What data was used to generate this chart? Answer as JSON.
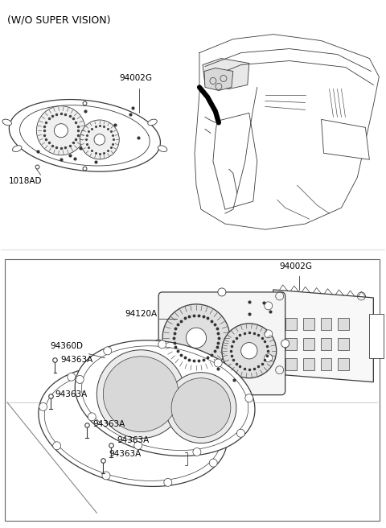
{
  "title": "(W/O SUPER VISION)",
  "bg_color": "#ffffff",
  "line_color": "#3a3a3a",
  "text_color": "#000000",
  "fig_width": 4.8,
  "fig_height": 6.56,
  "dpi": 100,
  "top_label1": "94002G",
  "top_label2": "1018AD",
  "bottom_label0": "94002G",
  "bottom_label1": "94120A",
  "bottom_label2": "94360D",
  "bottom_label3a": "94363A",
  "bottom_label3b": "94363A",
  "bottom_label3c": "94363A",
  "bottom_label3d": "94363A",
  "bottom_label3e": "94363A"
}
